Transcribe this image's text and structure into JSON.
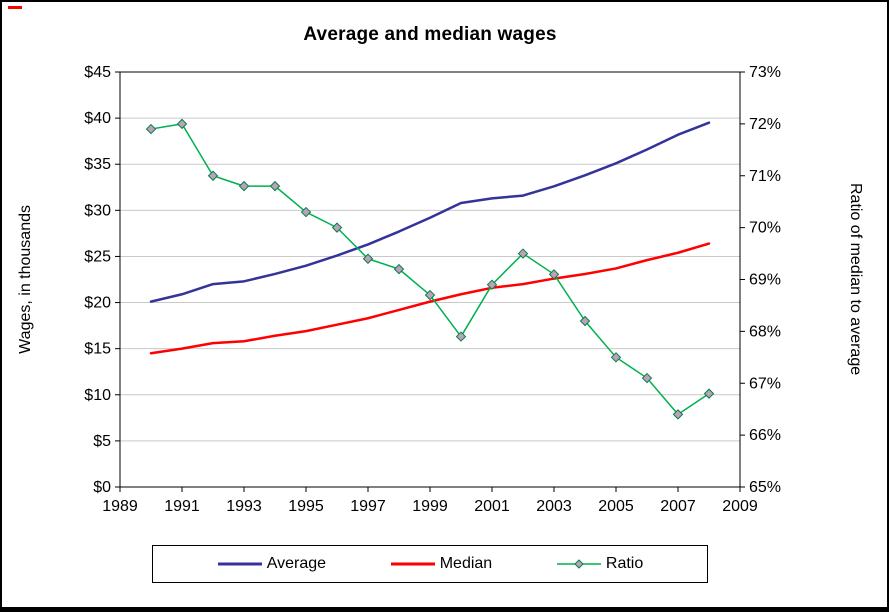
{
  "chart_data": {
    "type": "line",
    "title": "Average and median wages",
    "x_axis": {
      "min": 1989,
      "max": 2009,
      "tick_step": 2,
      "ticks": [
        "1989",
        "1991",
        "1993",
        "1995",
        "1997",
        "1999",
        "2001",
        "2003",
        "2005",
        "2007",
        "2009"
      ]
    },
    "left_axis": {
      "label": "Wages, in thousands",
      "min": 0,
      "max": 45,
      "step": 5,
      "ticks": [
        "$0",
        "$5",
        "$10",
        "$15",
        "$20",
        "$25",
        "$30",
        "$35",
        "$40",
        "$45"
      ]
    },
    "right_axis": {
      "label": "Ratio of median to average",
      "min": 65,
      "max": 73,
      "step": 1,
      "ticks": [
        "65%",
        "66%",
        "67%",
        "68%",
        "69%",
        "70%",
        "71%",
        "72%",
        "73%"
      ]
    },
    "years": [
      1990,
      1991,
      1992,
      1993,
      1994,
      1995,
      1996,
      1997,
      1998,
      1999,
      2000,
      2001,
      2002,
      2003,
      2004,
      2005,
      2006,
      2007,
      2008
    ],
    "series": [
      {
        "name": "Average",
        "axis": "left",
        "color": "#333399",
        "line_width": 2.5,
        "marker": "none",
        "values": [
          20.1,
          20.9,
          22.0,
          22.3,
          23.1,
          24.0,
          25.1,
          26.3,
          27.7,
          29.2,
          30.8,
          31.3,
          31.6,
          32.6,
          33.8,
          35.1,
          36.6,
          38.2,
          39.5
        ]
      },
      {
        "name": "Median",
        "axis": "left",
        "color": "#ff0000",
        "line_width": 2.5,
        "marker": "none",
        "values": [
          14.5,
          15.0,
          15.6,
          15.8,
          16.4,
          16.9,
          17.6,
          18.3,
          19.2,
          20.1,
          20.9,
          21.6,
          22.0,
          22.6,
          23.1,
          23.7,
          24.6,
          25.4,
          26.4
        ]
      },
      {
        "name": "Ratio",
        "axis": "right",
        "color": "#00b050",
        "line_width": 1.5,
        "marker": "diamond",
        "marker_fill": "#bf9fbf",
        "values": [
          71.9,
          72.0,
          71.0,
          70.8,
          70.8,
          70.3,
          70.0,
          69.4,
          69.2,
          68.7,
          67.9,
          68.9,
          69.5,
          69.1,
          68.2,
          67.5,
          67.1,
          66.4,
          66.8
        ]
      }
    ],
    "grid": {
      "show": true,
      "color": "#c9c9c9"
    },
    "axis_color": "#000000",
    "legend": {
      "position": "bottom",
      "entries": [
        "Average",
        "Median",
        "Ratio"
      ]
    }
  }
}
